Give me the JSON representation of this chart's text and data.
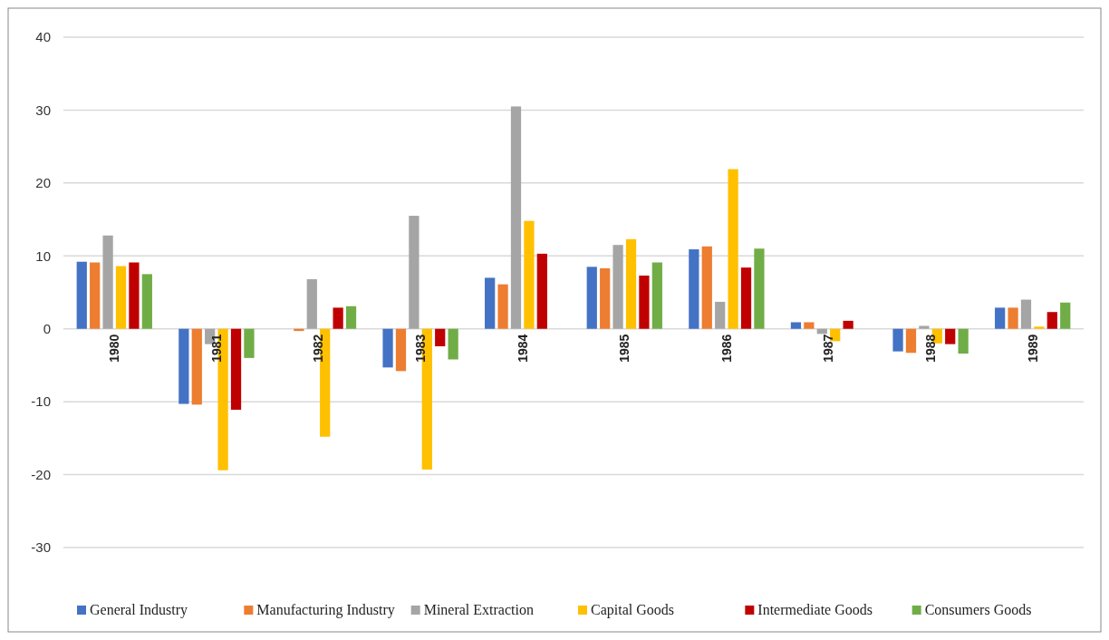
{
  "chart_data": {
    "type": "bar",
    "categories": [
      "1980",
      "1981",
      "1982",
      "1983",
      "1984",
      "1985",
      "1986",
      "1987",
      "1988",
      "1989"
    ],
    "series": [
      {
        "name": "General Industry",
        "color": "#4472c4",
        "values": [
          9.2,
          -10.3,
          0,
          -5.3,
          7.0,
          8.5,
          10.9,
          0.9,
          -3.1,
          2.9
        ]
      },
      {
        "name": "Manufacturing Industry",
        "color": "#ed7d31",
        "values": [
          9.1,
          -10.4,
          -0.3,
          -5.8,
          6.1,
          8.3,
          11.3,
          0.9,
          -3.3,
          2.9
        ]
      },
      {
        "name": "Mineral Extraction",
        "color": "#a5a5a5",
        "values": [
          12.8,
          -2.1,
          6.8,
          15.5,
          30.5,
          11.5,
          3.7,
          -0.7,
          0.4,
          4.0
        ]
      },
      {
        "name": "Capital Goods",
        "color": "#ffc000",
        "values": [
          8.6,
          -19.4,
          -14.8,
          -19.3,
          14.8,
          12.3,
          21.9,
          -1.7,
          -2.0,
          0.3
        ]
      },
      {
        "name": "Intermediate Goods",
        "color": "#c00000",
        "values": [
          9.1,
          -11.1,
          2.9,
          -2.4,
          10.3,
          7.3,
          8.4,
          1.1,
          -2.1,
          2.3
        ]
      },
      {
        "name": "Consumers Goods",
        "color": "#70ad47",
        "values": [
          7.5,
          -4.0,
          3.1,
          -4.2,
          0,
          9.1,
          11.0,
          0,
          -3.4,
          3.6
        ]
      }
    ],
    "ylim": [
      -30,
      40
    ],
    "yticks": [
      -30,
      -20,
      -10,
      0,
      10,
      20,
      30,
      40
    ],
    "grid": "y",
    "legend": "bottom"
  }
}
